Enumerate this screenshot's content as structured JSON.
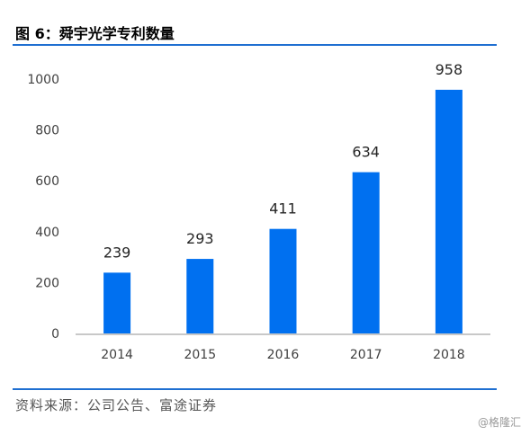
{
  "figure": {
    "title": "图 6：舜宇光学专利数量",
    "source": "资料来源：公司公告、富途证券",
    "watermark": "@格隆汇"
  },
  "colors": {
    "bar": "#0070f0",
    "rule": "#1f6fd1",
    "axis": "#c8c8c8"
  },
  "chart_data": {
    "type": "bar",
    "categories": [
      "2014",
      "2015",
      "2016",
      "2017",
      "2018"
    ],
    "values": [
      239,
      293,
      411,
      634,
      958
    ],
    "data_labels": [
      "239",
      "293",
      "411",
      "634",
      "958"
    ],
    "yticks": [
      0,
      200,
      400,
      600,
      800,
      1000
    ],
    "ytick_labels": [
      "0",
      "200",
      "400",
      "600",
      "800",
      "1000"
    ],
    "ylim": [
      0,
      1000
    ],
    "grid": false,
    "legend": "none"
  }
}
